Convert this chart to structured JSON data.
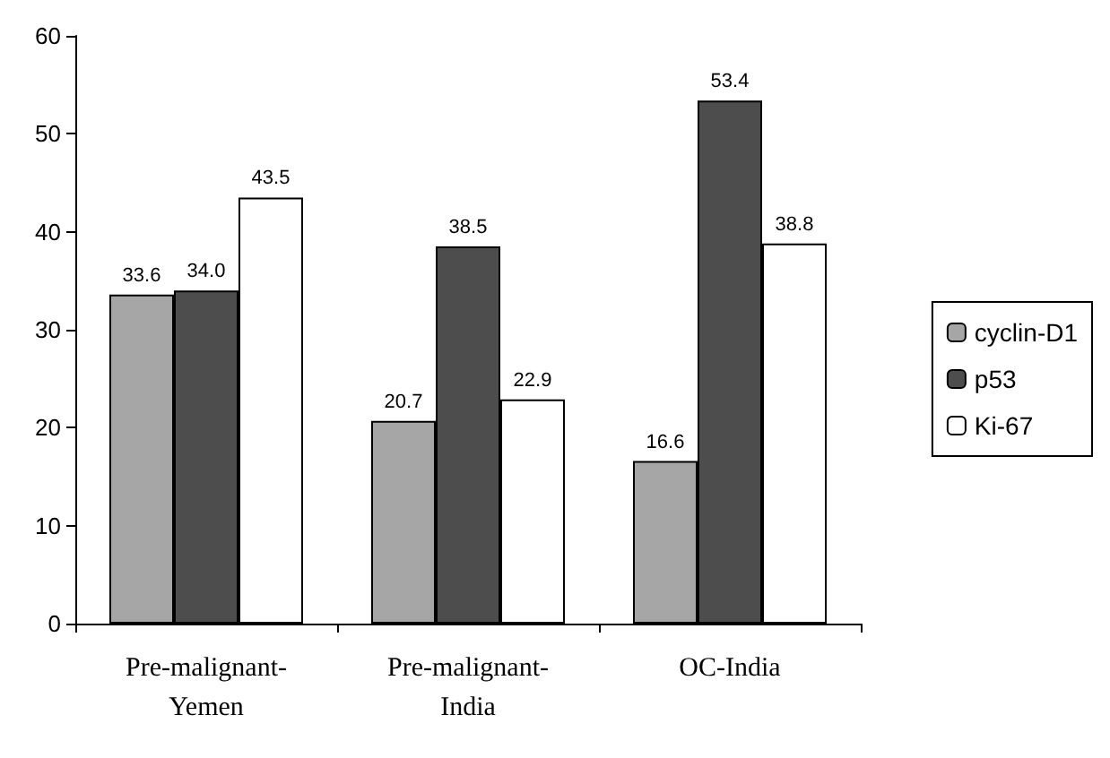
{
  "chart_data": {
    "type": "bar",
    "categories": [
      "Pre-malignant-Yemen",
      "Pre-malignant-India",
      "OC-India"
    ],
    "series": [
      {
        "name": "cyclin-D1",
        "color": "#a6a6a6",
        "values": [
          33.6,
          20.7,
          16.6
        ],
        "value_labels": [
          "33.6",
          "20.7",
          "16.6"
        ]
      },
      {
        "name": "p53",
        "color": "#4d4d4d",
        "values": [
          34.0,
          38.5,
          53.4
        ],
        "value_labels": [
          "34.0",
          "38.5",
          "53.4"
        ]
      },
      {
        "name": "Ki-67",
        "color": "#ffffff",
        "values": [
          43.5,
          22.9,
          38.8
        ],
        "value_labels": [
          "43.5",
          "22.9",
          "38.8"
        ]
      }
    ],
    "ylim": [
      0,
      60
    ],
    "yticks": [
      0,
      10,
      20,
      30,
      40,
      50,
      60
    ],
    "grid": false,
    "legend": "right"
  }
}
